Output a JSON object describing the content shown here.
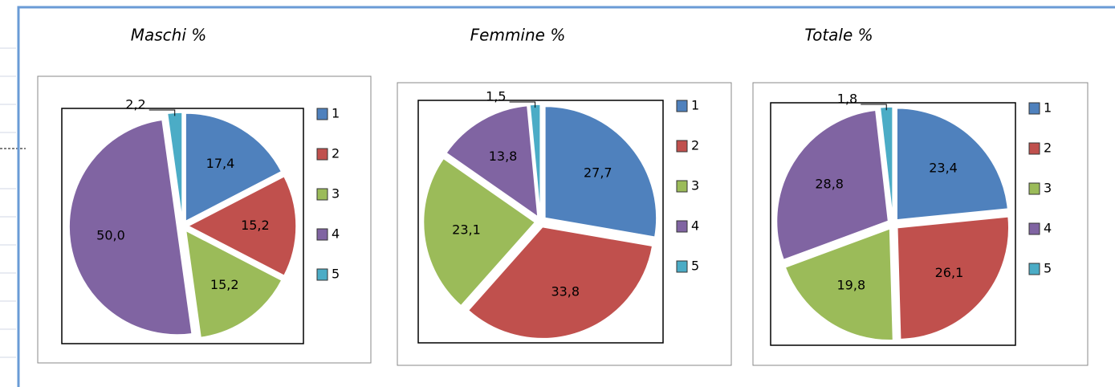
{
  "chart_data": [
    {
      "type": "pie",
      "title": "Maschi %",
      "categories": [
        "1",
        "2",
        "3",
        "4",
        "5"
      ],
      "values": [
        17.4,
        15.2,
        15.2,
        50.0,
        2.2
      ],
      "value_labels": [
        "17,4",
        "15,2",
        "15,2",
        "50,0",
        "2,2"
      ],
      "colors": [
        "#4f81bd",
        "#c0504d",
        "#9bbb59",
        "#8064a2",
        "#4bacc6"
      ],
      "legend": "right"
    },
    {
      "type": "pie",
      "title": "Femmine %",
      "categories": [
        "1",
        "2",
        "3",
        "4",
        "5"
      ],
      "values": [
        27.7,
        33.8,
        23.1,
        13.8,
        1.5
      ],
      "value_labels": [
        "27,7",
        "33,8",
        "23,1",
        "13,8",
        "1,5"
      ],
      "colors": [
        "#4f81bd",
        "#c0504d",
        "#9bbb59",
        "#8064a2",
        "#4bacc6"
      ],
      "legend": "right"
    },
    {
      "type": "pie",
      "title": "Totale %",
      "categories": [
        "1",
        "2",
        "3",
        "4",
        "5"
      ],
      "values": [
        23.4,
        26.1,
        19.8,
        28.8,
        1.8
      ],
      "value_labels": [
        "23,4",
        "26,1",
        "19,8",
        "28,8",
        "1,8"
      ],
      "colors": [
        "#4f81bd",
        "#c0504d",
        "#9bbb59",
        "#8064a2",
        "#4bacc6"
      ],
      "legend": "right"
    }
  ]
}
